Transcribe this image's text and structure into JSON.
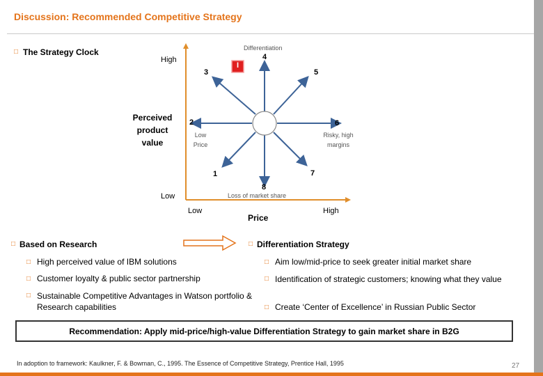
{
  "title": "Discussion: Recommended Competitive Strategy",
  "strategy_clock": {
    "heading": "The Strategy Clock",
    "y_axis_label": "Perceived product value",
    "y_high": "High",
    "y_low": "Low",
    "x_axis_label": "Price",
    "x_low": "Low",
    "x_high": "High",
    "top_label": "Differentiation",
    "bottom_label": "Loss of market share",
    "left_label": "Low Price",
    "right_label": "Risky, high margins",
    "marker": "I",
    "positions": [
      "1",
      "2",
      "3",
      "4",
      "5",
      "6",
      "7",
      "8"
    ]
  },
  "research": {
    "heading": "Based on Research",
    "items": [
      "High perceived value of IBM solutions",
      "Customer loyalty & public sector partnership",
      "Sustainable Competitive Advantages in Watson portfolio & Research capabilities"
    ]
  },
  "differentiation": {
    "heading": "Differentiation Strategy",
    "items": [
      "Aim low/mid-price to seek greater initial market share",
      "Identification of strategic customers; knowing what they value",
      "Create ‘Center of Excellence’ in Russian Public Sector"
    ]
  },
  "recommendation": "Recommendation: Apply mid-price/high-value Differentiation Strategy to gain market share in B2G",
  "footer": "In adoption to framework: Kaulkner, F. & Bowman, C., 1995. The Essence of Competitive Strategy, Prentice Hall, 1995",
  "page_number": "27",
  "colors": {
    "accent": "#e4741b",
    "axis": "#e08e2b",
    "arrow": "#3d6397",
    "marker": "#e02020",
    "flow_arrow": "#e4741b"
  }
}
